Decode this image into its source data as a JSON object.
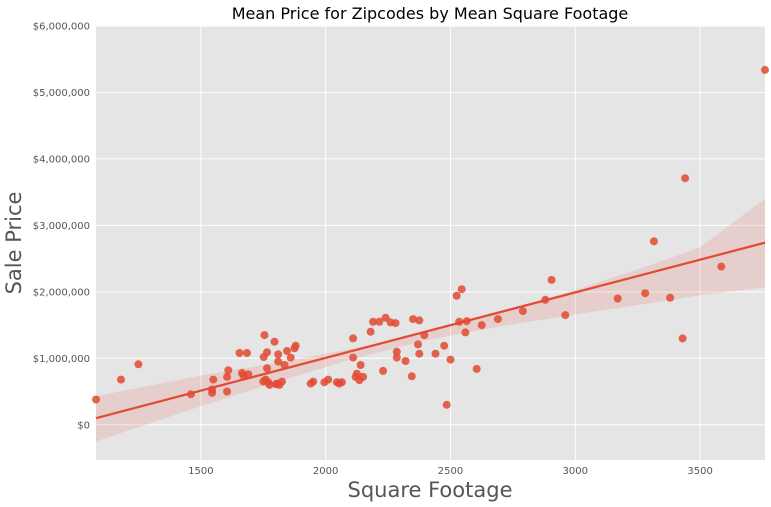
{
  "chart_data": {
    "type": "scatter",
    "title": "Mean Price for Zipcodes by Mean Square Footage",
    "xlabel": "Square Footage",
    "ylabel": "Sale Price",
    "xlim": [
      1080,
      3760
    ],
    "ylim": [
      -530000,
      6000000
    ],
    "x_ticks": [
      1500,
      2000,
      2500,
      3000,
      3500
    ],
    "x_tick_labels": [
      "1500",
      "2000",
      "2500",
      "3000",
      "3500"
    ],
    "y_ticks": [
      0,
      1000000,
      2000000,
      3000000,
      4000000,
      5000000,
      6000000
    ],
    "y_tick_labels": [
      "$0",
      "$1,000,000",
      "$2,000,000",
      "$3,000,000",
      "$4,000,000",
      "$5,000,000",
      "$6,000,000"
    ],
    "grid": true,
    "regression": {
      "x": [
        1080,
        3760
      ],
      "y": [
        100000,
        2740000
      ]
    },
    "confidence_band": {
      "x": [
        1080,
        1500,
        1800,
        2100,
        2400,
        2700,
        3000,
        3300,
        3500,
        3760
      ],
      "lower": [
        -250000,
        280000,
        640000,
        980000,
        1270000,
        1480000,
        1660000,
        1830000,
        1950000,
        2070000
      ],
      "upper": [
        430000,
        740000,
        930000,
        1140000,
        1380000,
        1690000,
        2030000,
        2400000,
        2670000,
        3400000
      ]
    },
    "series": [
      {
        "x": [
          1080,
          1180,
          1250,
          1460,
          1545,
          1545,
          1550,
          1605,
          1605,
          1610,
          1655,
          1665,
          1670,
          1685,
          1690,
          1750,
          1752,
          1755,
          1760,
          1765,
          1765,
          1770,
          1775,
          1795,
          1800,
          1805,
          1810,
          1810,
          1815,
          1825,
          1835,
          1845,
          1860,
          1875,
          1880,
          1940,
          1950,
          1995,
          2010,
          2045,
          2055,
          2065,
          2110,
          2110,
          2120,
          2125,
          2135,
          2140,
          2150,
          2180,
          2190,
          2215,
          2230,
          2240,
          2260,
          2280,
          2285,
          2285,
          2320,
          2345,
          2350,
          2370,
          2375,
          2375,
          2395,
          2440,
          2475,
          2485,
          2500,
          2525,
          2535,
          2545,
          2560,
          2565,
          2605,
          2625,
          2690,
          2790,
          2880,
          2905,
          2960,
          3170,
          3280,
          3315,
          3380,
          3430,
          3440,
          3585,
          3760
        ],
        "y": [
          380000,
          680000,
          910000,
          460000,
          480000,
          530000,
          680000,
          500000,
          720000,
          820000,
          1080000,
          780000,
          740000,
          1080000,
          760000,
          650000,
          1020000,
          1350000,
          680000,
          1090000,
          850000,
          640000,
          600000,
          1250000,
          610000,
          620000,
          950000,
          1060000,
          600000,
          650000,
          900000,
          1110000,
          1010000,
          1150000,
          1190000,
          620000,
          650000,
          640000,
          680000,
          640000,
          620000,
          640000,
          1010000,
          1300000,
          720000,
          770000,
          670000,
          900000,
          720000,
          1400000,
          1550000,
          1550000,
          810000,
          1610000,
          1540000,
          1530000,
          1100000,
          1010000,
          960000,
          730000,
          1590000,
          1210000,
          1570000,
          1070000,
          1350000,
          1070000,
          1190000,
          300000,
          980000,
          1940000,
          1550000,
          2040000,
          1390000,
          1560000,
          840000,
          1500000,
          1590000,
          1710000,
          1880000,
          2180000,
          1650000,
          1900000,
          1980000,
          2760000,
          1910000,
          1300000,
          3710000,
          2380000,
          5340000
        ]
      }
    ]
  }
}
